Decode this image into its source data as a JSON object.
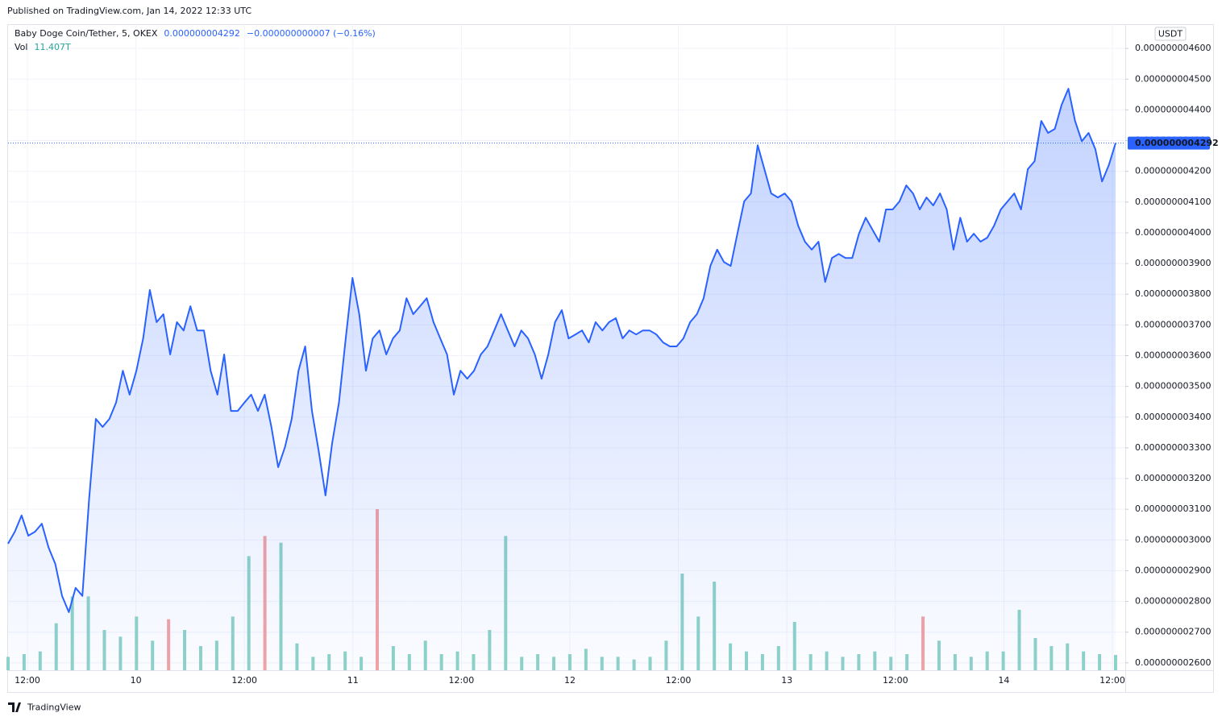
{
  "header": {
    "published": "Published on TradingView.com, Jan 14, 2022 12:33 UTC",
    "footer": "TradingView"
  },
  "chart_data": {
    "type": "area",
    "title": "Baby Doge Coin/Tether, 5, OKEX",
    "price_label": "0.000000004292",
    "change_label": "−0.000000000007 (−0.16%)",
    "currency": "USDT",
    "color": "#2962ff",
    "grid": true,
    "ylim": [
      2.576e-09,
      4.679e-09
    ],
    "yticks": [
      {
        "value": 2.6e-09,
        "label": "0.000000002600"
      },
      {
        "value": 2.7e-09,
        "label": "0.000000002700"
      },
      {
        "value": 2.8e-09,
        "label": "0.000000002800"
      },
      {
        "value": 2.9e-09,
        "label": "0.000000002900"
      },
      {
        "value": 3e-09,
        "label": "0.000000003000"
      },
      {
        "value": 3.1e-09,
        "label": "0.000000003100"
      },
      {
        "value": 3.2e-09,
        "label": "0.000000003200"
      },
      {
        "value": 3.3e-09,
        "label": "0.000000003300"
      },
      {
        "value": 3.4e-09,
        "label": "0.000000003400"
      },
      {
        "value": 3.5e-09,
        "label": "0.000000003500"
      },
      {
        "value": 3.6e-09,
        "label": "0.000000003600"
      },
      {
        "value": 3.7e-09,
        "label": "0.000000003700"
      },
      {
        "value": 3.8e-09,
        "label": "0.000000003800"
      },
      {
        "value": 3.9e-09,
        "label": "0.000000003900"
      },
      {
        "value": 4e-09,
        "label": "0.000000004000"
      },
      {
        "value": 4.1e-09,
        "label": "0.000000004100"
      },
      {
        "value": 4.2e-09,
        "label": "0.000000004200"
      },
      {
        "value": 4.3e-09,
        "label": "0.000000004300"
      },
      {
        "value": 4.4e-09,
        "label": "0.000000004400"
      },
      {
        "value": 4.5e-09,
        "label": "0.000000004500"
      },
      {
        "value": 4.6e-09,
        "label": "0.000000004600"
      }
    ],
    "xticks": [
      "12:00",
      "10",
      "12:00",
      "11",
      "12:00",
      "12",
      "12:00",
      "13",
      "12:00",
      "14",
      "12:00"
    ],
    "values": [
      2.988e-09,
      3.027e-09,
      3.08e-09,
      3.014e-09,
      3.027e-09,
      3.053e-09,
      2.975e-09,
      2.922e-09,
      2.818e-09,
      2.765e-09,
      2.844e-09,
      2.818e-09,
      3.132e-09,
      3.394e-09,
      3.368e-09,
      3.394e-09,
      3.447e-09,
      3.551e-09,
      3.473e-09,
      3.551e-09,
      3.656e-09,
      3.814e-09,
      3.709e-09,
      3.735e-09,
      3.604e-09,
      3.709e-09,
      3.682e-09,
      3.761e-09,
      3.682e-09,
      3.682e-09,
      3.551e-09,
      3.473e-09,
      3.604e-09,
      3.42e-09,
      3.42e-09,
      3.447e-09,
      3.473e-09,
      3.42e-09,
      3.473e-09,
      3.368e-09,
      3.237e-09,
      3.302e-09,
      3.394e-09,
      3.551e-09,
      3.63e-09,
      3.42e-09,
      3.289e-09,
      3.145e-09,
      3.316e-09,
      3.447e-09,
      3.656e-09,
      3.853e-09,
      3.735e-09,
      3.551e-09,
      3.656e-09,
      3.682e-09,
      3.604e-09,
      3.656e-09,
      3.682e-09,
      3.787e-09,
      3.735e-09,
      3.761e-09,
      3.787e-09,
      3.709e-09,
      3.656e-09,
      3.604e-09,
      3.473e-09,
      3.551e-09,
      3.525e-09,
      3.551e-09,
      3.604e-09,
      3.63e-09,
      3.682e-09,
      3.735e-09,
      3.682e-09,
      3.63e-09,
      3.682e-09,
      3.656e-09,
      3.604e-09,
      3.525e-09,
      3.604e-09,
      3.709e-09,
      3.748e-09,
      3.656e-09,
      3.669e-09,
      3.682e-09,
      3.643e-09,
      3.709e-09,
      3.682e-09,
      3.709e-09,
      3.722e-09,
      3.656e-09,
      3.682e-09,
      3.669e-09,
      3.682e-09,
      3.682e-09,
      3.669e-09,
      3.643e-09,
      3.63e-09,
      3.63e-09,
      3.656e-09,
      3.709e-09,
      3.735e-09,
      3.787e-09,
      3.892e-09,
      3.945e-09,
      3.905e-09,
      3.892e-09,
      3.997e-09,
      4.102e-09,
      4.128e-09,
      4.285e-09,
      4.207e-09,
      4.128e-09,
      4.115e-09,
      4.128e-09,
      4.102e-09,
      4.023e-09,
      3.971e-09,
      3.945e-09,
      3.971e-09,
      3.84e-09,
      3.918e-09,
      3.931e-09,
      3.918e-09,
      3.918e-09,
      3.997e-09,
      4.049e-09,
      4.01e-09,
      3.971e-09,
      4.076e-09,
      4.076e-09,
      4.102e-09,
      4.154e-09,
      4.128e-09,
      4.076e-09,
      4.115e-09,
      4.089e-09,
      4.128e-09,
      4.076e-09,
      3.945e-09,
      4.049e-09,
      3.971e-09,
      3.997e-09,
      3.971e-09,
      3.984e-09,
      4.023e-09,
      4.076e-09,
      4.102e-09,
      4.128e-09,
      4.076e-09,
      4.207e-09,
      4.233e-09,
      4.364e-09,
      4.325e-09,
      4.338e-09,
      4.416e-09,
      4.469e-09,
      4.364e-09,
      4.298e-09,
      4.325e-09,
      4.272e-09,
      4.167e-09,
      4.22e-09,
      4.292e-09
    ],
    "volume": {
      "name": "Vol",
      "last_label": "11.407T",
      "values": [
        10,
        12,
        14,
        35,
        55,
        55,
        30,
        25,
        40,
        22,
        38,
        30,
        18,
        22,
        40,
        85,
        100,
        95,
        20,
        10,
        12,
        14,
        10,
        120,
        18,
        12,
        22,
        12,
        14,
        12,
        30,
        100,
        10,
        12,
        10,
        12,
        16,
        10,
        10,
        8,
        10,
        22,
        72,
        40,
        66,
        20,
        14,
        12,
        18,
        36,
        12,
        14,
        10,
        12,
        14,
        10,
        12,
        40,
        22,
        12,
        10,
        14,
        14,
        45,
        24,
        18,
        20,
        14,
        12,
        11.407
      ],
      "colors": [
        "#8fd3c8",
        "#8fd3c8",
        "#8fd3c8",
        "#8fd3c8",
        "#8fd3c8",
        "#8fd3c8",
        "#8fd3c8",
        "#8fd3c8",
        "#8fd3c8",
        "#8fd3c8",
        "#f4a3a3",
        "#8fd3c8",
        "#8fd3c8",
        "#8fd3c8",
        "#8fd3c8",
        "#8fd3c8",
        "#f4a3a3",
        "#8fd3c8",
        "#8fd3c8",
        "#8fd3c8",
        "#8fd3c8",
        "#8fd3c8",
        "#8fd3c8",
        "#f4a3a3",
        "#8fd3c8",
        "#8fd3c8",
        "#8fd3c8",
        "#8fd3c8",
        "#8fd3c8",
        "#8fd3c8",
        "#8fd3c8",
        "#8fd3c8",
        "#8fd3c8",
        "#8fd3c8",
        "#8fd3c8",
        "#8fd3c8",
        "#8fd3c8",
        "#8fd3c8",
        "#8fd3c8",
        "#8fd3c8",
        "#8fd3c8",
        "#8fd3c8",
        "#8fd3c8",
        "#8fd3c8",
        "#8fd3c8",
        "#8fd3c8",
        "#8fd3c8",
        "#8fd3c8",
        "#8fd3c8",
        "#8fd3c8",
        "#8fd3c8",
        "#8fd3c8",
        "#8fd3c8",
        "#8fd3c8",
        "#8fd3c8",
        "#8fd3c8",
        "#8fd3c8",
        "#f4a3a3",
        "#8fd3c8",
        "#8fd3c8",
        "#8fd3c8",
        "#8fd3c8",
        "#8fd3c8",
        "#8fd3c8",
        "#8fd3c8",
        "#8fd3c8",
        "#8fd3c8",
        "#8fd3c8",
        "#8fd3c8",
        "#8fd3c8"
      ]
    }
  }
}
